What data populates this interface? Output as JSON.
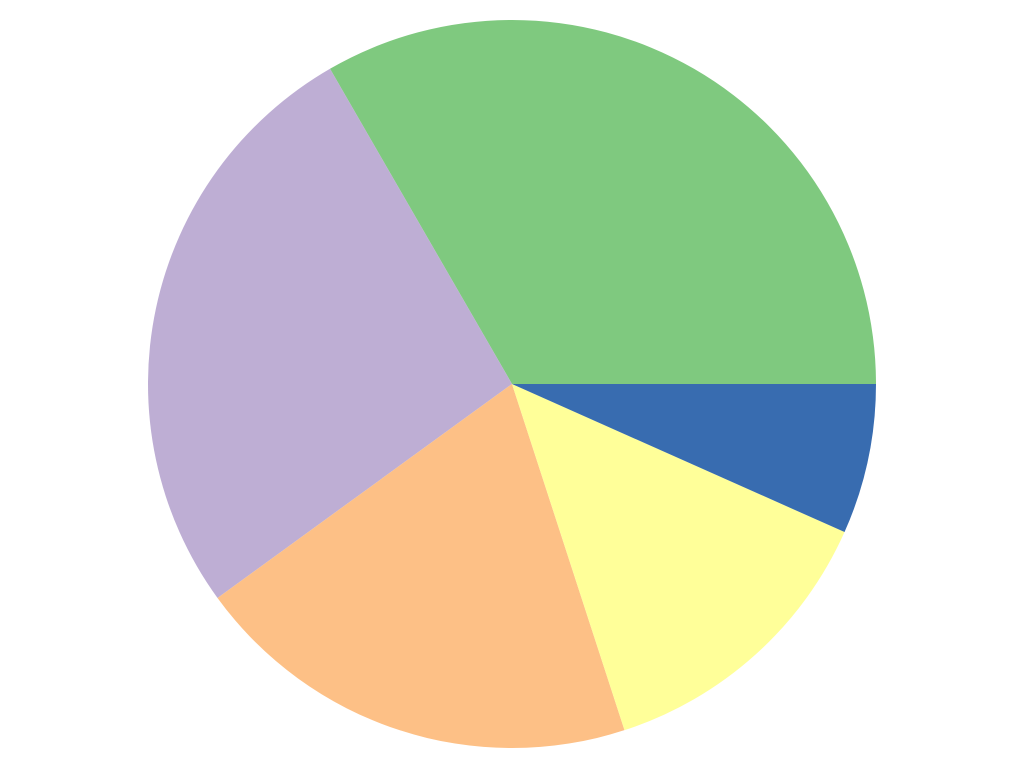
{
  "chart_data": {
    "type": "pie",
    "title": "",
    "start_angle_deg": 0,
    "direction": "counterclockwise",
    "values": [
      5,
      4,
      3,
      2,
      1
    ],
    "colors": [
      "#7fc97f",
      "#beaed4",
      "#fdc086",
      "#ffff99",
      "#386cb0"
    ],
    "legend": "none"
  }
}
